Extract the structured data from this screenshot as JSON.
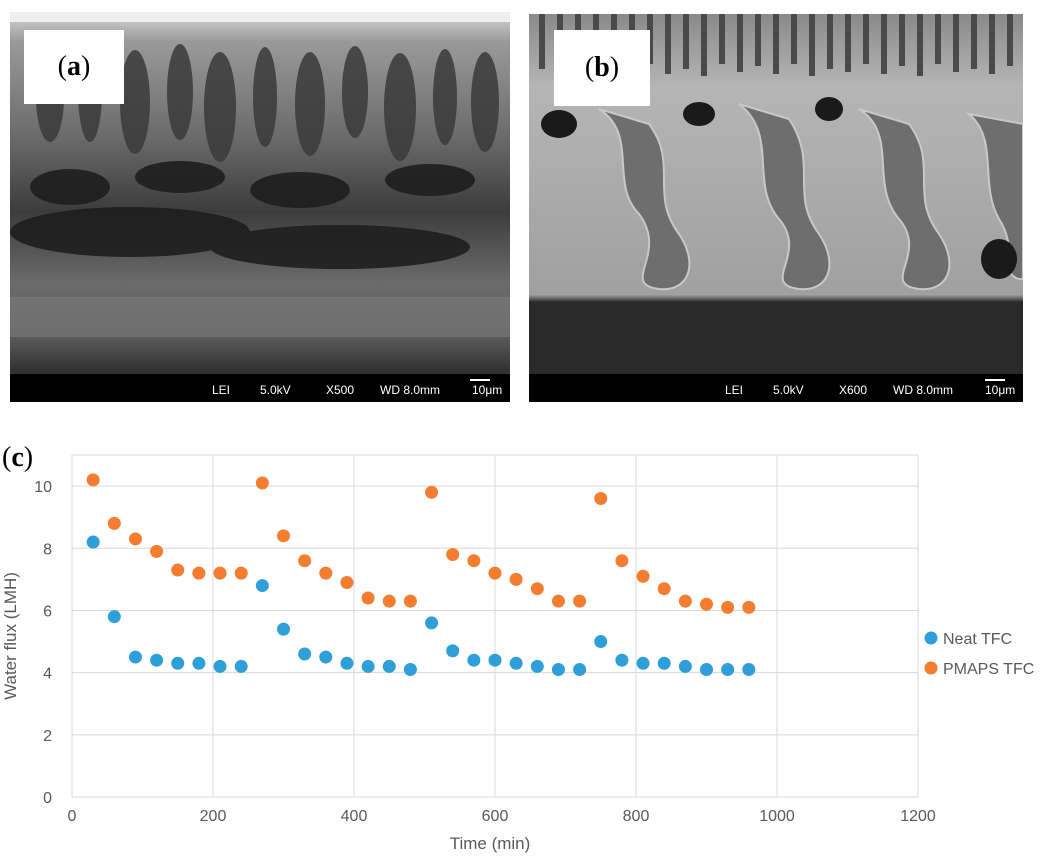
{
  "panels": {
    "a": {
      "label": "a",
      "info": {
        "mode": "LEI",
        "voltage": "5.0kV",
        "magnification": "X500",
        "wd": "WD 8.0mm",
        "scale": "10μm"
      }
    },
    "b": {
      "label": "b",
      "info": {
        "mode": "LEI",
        "voltage": "5.0kV",
        "magnification": "X600",
        "wd": "WD 8.0mm",
        "scale": "10μm"
      }
    },
    "c": {
      "label": "c"
    }
  },
  "colors": {
    "neat": "#2E9FD8",
    "pmaps": "#F47D30",
    "grid": "#d9d9d9",
    "axis_text": "#595959"
  },
  "chart_data": {
    "type": "scatter",
    "title": "",
    "xlabel": "Time (min)",
    "ylabel": "Water flux (LMH)",
    "xlim": [
      0,
      1200
    ],
    "ylim": [
      0,
      11
    ],
    "xticks": [
      0,
      200,
      400,
      600,
      800,
      1000,
      1200
    ],
    "yticks": [
      0,
      2,
      4,
      6,
      8,
      10
    ],
    "grid": true,
    "legend_position": "right",
    "series": [
      {
        "name": "Neat TFC",
        "color": "#2E9FD8",
        "points": [
          [
            30,
            8.2
          ],
          [
            60,
            5.8
          ],
          [
            90,
            4.5
          ],
          [
            120,
            4.4
          ],
          [
            150,
            4.3
          ],
          [
            180,
            4.3
          ],
          [
            210,
            4.2
          ],
          [
            240,
            4.2
          ],
          [
            270,
            6.8
          ],
          [
            300,
            5.4
          ],
          [
            330,
            4.6
          ],
          [
            360,
            4.5
          ],
          [
            390,
            4.3
          ],
          [
            420,
            4.2
          ],
          [
            450,
            4.2
          ],
          [
            480,
            4.1
          ],
          [
            510,
            5.6
          ],
          [
            540,
            4.7
          ],
          [
            570,
            4.4
          ],
          [
            600,
            4.4
          ],
          [
            630,
            4.3
          ],
          [
            660,
            4.2
          ],
          [
            690,
            4.1
          ],
          [
            720,
            4.1
          ],
          [
            750,
            5.0
          ],
          [
            780,
            4.4
          ],
          [
            810,
            4.3
          ],
          [
            840,
            4.3
          ],
          [
            870,
            4.2
          ],
          [
            900,
            4.1
          ],
          [
            930,
            4.1
          ],
          [
            960,
            4.1
          ]
        ]
      },
      {
        "name": "PMAPS TFC",
        "color": "#F47D30",
        "points": [
          [
            30,
            10.2
          ],
          [
            60,
            8.8
          ],
          [
            90,
            8.3
          ],
          [
            120,
            7.9
          ],
          [
            150,
            7.3
          ],
          [
            180,
            7.2
          ],
          [
            210,
            7.2
          ],
          [
            240,
            7.2
          ],
          [
            270,
            10.1
          ],
          [
            300,
            8.4
          ],
          [
            330,
            7.6
          ],
          [
            360,
            7.2
          ],
          [
            390,
            6.9
          ],
          [
            420,
            6.4
          ],
          [
            450,
            6.3
          ],
          [
            480,
            6.3
          ],
          [
            510,
            9.8
          ],
          [
            540,
            7.8
          ],
          [
            570,
            7.6
          ],
          [
            600,
            7.2
          ],
          [
            630,
            7.0
          ],
          [
            660,
            6.7
          ],
          [
            690,
            6.3
          ],
          [
            720,
            6.3
          ],
          [
            750,
            9.6
          ],
          [
            780,
            7.6
          ],
          [
            810,
            7.1
          ],
          [
            840,
            6.7
          ],
          [
            870,
            6.3
          ],
          [
            900,
            6.2
          ],
          [
            930,
            6.1
          ],
          [
            960,
            6.1
          ]
        ]
      }
    ]
  }
}
